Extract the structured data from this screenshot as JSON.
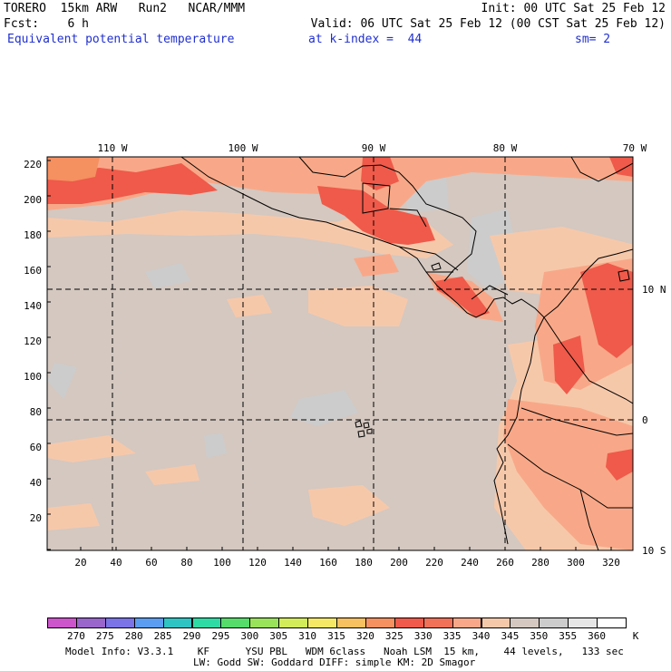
{
  "header": {
    "line1_left": "TORERO  15km ARW   Run2   NCAR/MMM",
    "line1_right": "Init: 00 UTC Sat 25 Feb 12",
    "line2_left": "Fcst:    6 h",
    "line2_right": "Valid: 06 UTC Sat 25 Feb 12 (00 CST Sat 25 Feb 12)",
    "field_name": "Equivalent potential temperature",
    "level": "at k-index =  44",
    "smoothing": "sm= 2"
  },
  "map": {
    "top_lon_labels": [
      "110 W",
      "100 W",
      "90 W",
      "80 W",
      "70 W"
    ],
    "right_lat_labels": [
      "10 N",
      "0",
      "10 S"
    ],
    "left_y_ticks": [
      "220",
      "200",
      "180",
      "160",
      "140",
      "120",
      "100",
      "80",
      "60",
      "40",
      "20"
    ],
    "bottom_x_ticks": [
      "20",
      "40",
      "60",
      "80",
      "100",
      "120",
      "140",
      "160",
      "180",
      "200",
      "220",
      "240",
      "260",
      "280",
      "300",
      "320"
    ]
  },
  "colorbar": {
    "unit": "K",
    "labels": [
      "270",
      "275",
      "280",
      "285",
      "290",
      "295",
      "300",
      "305",
      "310",
      "315",
      "320",
      "325",
      "330",
      "335",
      "340",
      "345",
      "350",
      "355",
      "360"
    ],
    "colors": [
      "#cc55cc",
      "#9966cc",
      "#7a74e6",
      "#5b9df0",
      "#2fc4c4",
      "#2fdba4",
      "#55dc6a",
      "#99e35a",
      "#d3ec5a",
      "#f5e866",
      "#f7c060",
      "#f59060",
      "#ef5a4a",
      "#f07058",
      "#f8a888",
      "#f6c8aa",
      "#d4c8c0",
      "#cccccc",
      "#e6e6e6",
      "#ffffff"
    ]
  },
  "footer": {
    "line1": "Model Info: V3.3.1    KF      YSU PBL   WDM 6class   Noah LSM  15 km,    44 levels,   133 sec",
    "line2": "LW: Godd SW: Goddard DIFF: simple KM: 2D Smagor"
  }
}
